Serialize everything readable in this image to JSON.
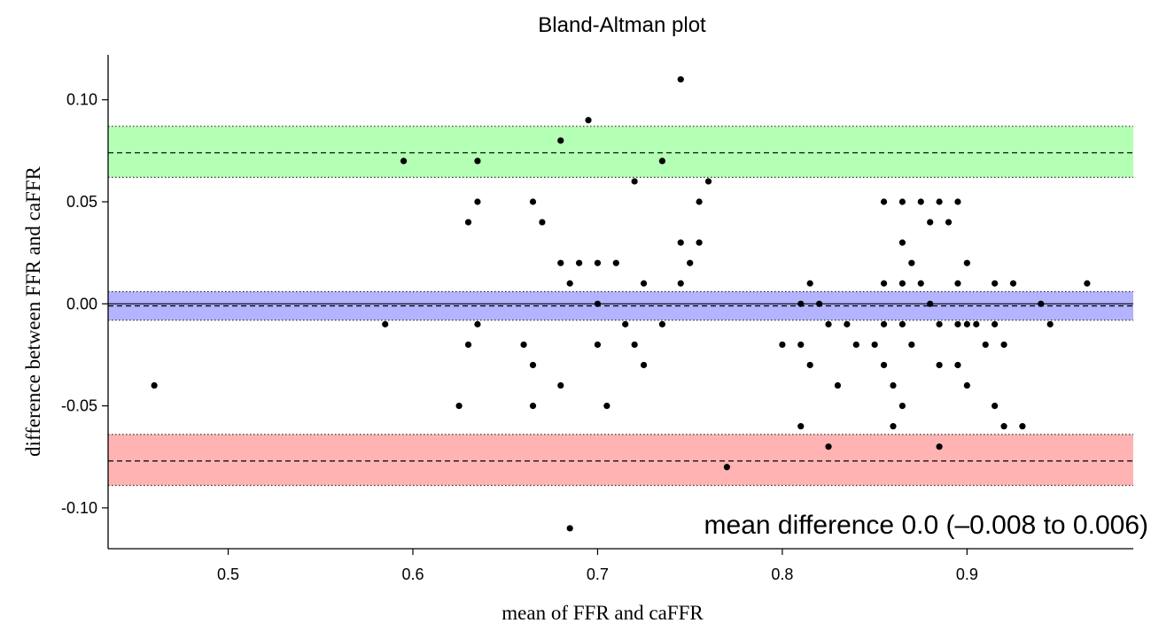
{
  "chart_data": {
    "type": "scatter",
    "title": "Bland-Altman plot",
    "xlabel": "mean of FFR and caFFR",
    "ylabel": "difference between FFR and caFFR",
    "annotation": "mean difference 0.0 (–0.008 to 0.006)",
    "xlim": [
      0.435,
      0.99
    ],
    "ylim": [
      -0.12,
      0.122
    ],
    "x_ticks": [
      0.5,
      0.6,
      0.7,
      0.8,
      0.9
    ],
    "x_tick_labels": [
      "0.5",
      "0.6",
      "0.7",
      "0.8",
      "0.9"
    ],
    "y_ticks": [
      0.1,
      0.05,
      0.0,
      -0.05,
      -0.1
    ],
    "y_tick_labels": [
      "0.10",
      "0.05",
      "0.00",
      "-0.05",
      "-0.10"
    ],
    "grid": false,
    "colors": {
      "upper_band": "#b3ffb3",
      "mean_band": "#b3b3ff",
      "lower_band": "#ffb3b3",
      "points": "#000000",
      "axis": "#000000"
    },
    "bands": [
      {
        "band": "upper_loa",
        "center": 0.074,
        "lower": 0.062,
        "upper": 0.087,
        "color": "#b3ffb3"
      },
      {
        "band": "mean",
        "center": -0.001,
        "lower": -0.008,
        "upper": 0.006,
        "color": "#b3b3ff"
      },
      {
        "band": "lower_loa",
        "center": -0.077,
        "lower": -0.089,
        "upper": -0.064,
        "color": "#ffb3b3"
      }
    ],
    "zero_line": 0.0,
    "points": [
      [
        0.46,
        -0.04
      ],
      [
        0.585,
        -0.01
      ],
      [
        0.595,
        0.07
      ],
      [
        0.625,
        -0.05
      ],
      [
        0.63,
        0.04
      ],
      [
        0.63,
        -0.02
      ],
      [
        0.635,
        0.07
      ],
      [
        0.635,
        0.05
      ],
      [
        0.635,
        -0.01
      ],
      [
        0.66,
        -0.02
      ],
      [
        0.665,
        0.05
      ],
      [
        0.665,
        -0.03
      ],
      [
        0.665,
        -0.05
      ],
      [
        0.67,
        0.04
      ],
      [
        0.68,
        0.08
      ],
      [
        0.68,
        0.02
      ],
      [
        0.68,
        -0.04
      ],
      [
        0.685,
        0.01
      ],
      [
        0.685,
        -0.11
      ],
      [
        0.69,
        0.02
      ],
      [
        0.695,
        0.09
      ],
      [
        0.7,
        0.02
      ],
      [
        0.7,
        0.0
      ],
      [
        0.7,
        -0.02
      ],
      [
        0.705,
        -0.05
      ],
      [
        0.71,
        0.02
      ],
      [
        0.715,
        -0.01
      ],
      [
        0.72,
        0.06
      ],
      [
        0.72,
        -0.02
      ],
      [
        0.725,
        0.01
      ],
      [
        0.725,
        -0.03
      ],
      [
        0.735,
        0.07
      ],
      [
        0.735,
        -0.01
      ],
      [
        0.745,
        0.11
      ],
      [
        0.745,
        0.03
      ],
      [
        0.745,
        0.01
      ],
      [
        0.75,
        0.02
      ],
      [
        0.755,
        0.05
      ],
      [
        0.755,
        0.03
      ],
      [
        0.76,
        0.06
      ],
      [
        0.77,
        -0.08
      ],
      [
        0.8,
        -0.02
      ],
      [
        0.81,
        0.0
      ],
      [
        0.81,
        -0.02
      ],
      [
        0.81,
        -0.06
      ],
      [
        0.815,
        0.01
      ],
      [
        0.815,
        -0.03
      ],
      [
        0.82,
        0.0
      ],
      [
        0.825,
        -0.01
      ],
      [
        0.825,
        -0.07
      ],
      [
        0.83,
        -0.04
      ],
      [
        0.835,
        -0.01
      ],
      [
        0.84,
        -0.02
      ],
      [
        0.85,
        -0.02
      ],
      [
        0.855,
        0.05
      ],
      [
        0.855,
        0.01
      ],
      [
        0.855,
        -0.01
      ],
      [
        0.855,
        -0.03
      ],
      [
        0.86,
        -0.04
      ],
      [
        0.86,
        -0.06
      ],
      [
        0.865,
        0.05
      ],
      [
        0.865,
        0.03
      ],
      [
        0.865,
        0.01
      ],
      [
        0.865,
        -0.01
      ],
      [
        0.865,
        -0.05
      ],
      [
        0.87,
        0.02
      ],
      [
        0.87,
        -0.02
      ],
      [
        0.875,
        0.05
      ],
      [
        0.875,
        0.01
      ],
      [
        0.88,
        0.04
      ],
      [
        0.88,
        0.0
      ],
      [
        0.885,
        0.05
      ],
      [
        0.885,
        -0.01
      ],
      [
        0.885,
        -0.03
      ],
      [
        0.885,
        -0.07
      ],
      [
        0.89,
        0.04
      ],
      [
        0.895,
        0.05
      ],
      [
        0.895,
        0.01
      ],
      [
        0.895,
        -0.01
      ],
      [
        0.895,
        -0.03
      ],
      [
        0.9,
        0.02
      ],
      [
        0.9,
        -0.01
      ],
      [
        0.9,
        -0.04
      ],
      [
        0.905,
        -0.01
      ],
      [
        0.91,
        -0.02
      ],
      [
        0.915,
        0.01
      ],
      [
        0.915,
        -0.01
      ],
      [
        0.915,
        -0.05
      ],
      [
        0.92,
        -0.02
      ],
      [
        0.92,
        -0.06
      ],
      [
        0.925,
        0.01
      ],
      [
        0.93,
        -0.06
      ],
      [
        0.94,
        0.0
      ],
      [
        0.945,
        -0.01
      ],
      [
        0.965,
        0.01
      ]
    ]
  }
}
